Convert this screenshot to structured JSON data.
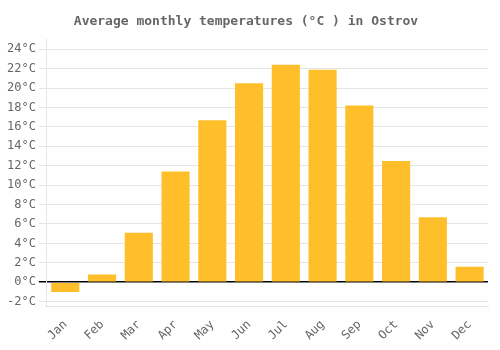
{
  "chart_data": {
    "type": "bar",
    "title": "Average monthly temperatures (°C ) in Ostrov",
    "categories": [
      "Jan",
      "Feb",
      "Mar",
      "Apr",
      "May",
      "Jun",
      "Jul",
      "Aug",
      "Sep",
      "Oct",
      "Nov",
      "Dec"
    ],
    "values": [
      -1.0,
      0.8,
      5.1,
      11.4,
      16.7,
      20.5,
      22.4,
      21.9,
      18.2,
      12.5,
      6.7,
      1.6
    ],
    "color": "#FFBF2A",
    "ylim": [
      -2.5,
      25
    ],
    "yticks": [
      {
        "value": -2,
        "label": "-2°C"
      },
      {
        "value": 0,
        "label": "0°C"
      },
      {
        "value": 2,
        "label": "2°C"
      },
      {
        "value": 4,
        "label": "4°C"
      },
      {
        "value": 6,
        "label": "6°C"
      },
      {
        "value": 8,
        "label": "8°C"
      },
      {
        "value": 10,
        "label": "10°C"
      },
      {
        "value": 12,
        "label": "12°C"
      },
      {
        "value": 14,
        "label": "14°C"
      },
      {
        "value": 16,
        "label": "16°C"
      },
      {
        "value": 18,
        "label": "18°C"
      },
      {
        "value": 20,
        "label": "20°C"
      },
      {
        "value": 22,
        "label": "22°C"
      },
      {
        "value": 24,
        "label": "24°C"
      }
    ],
    "grid": true
  }
}
